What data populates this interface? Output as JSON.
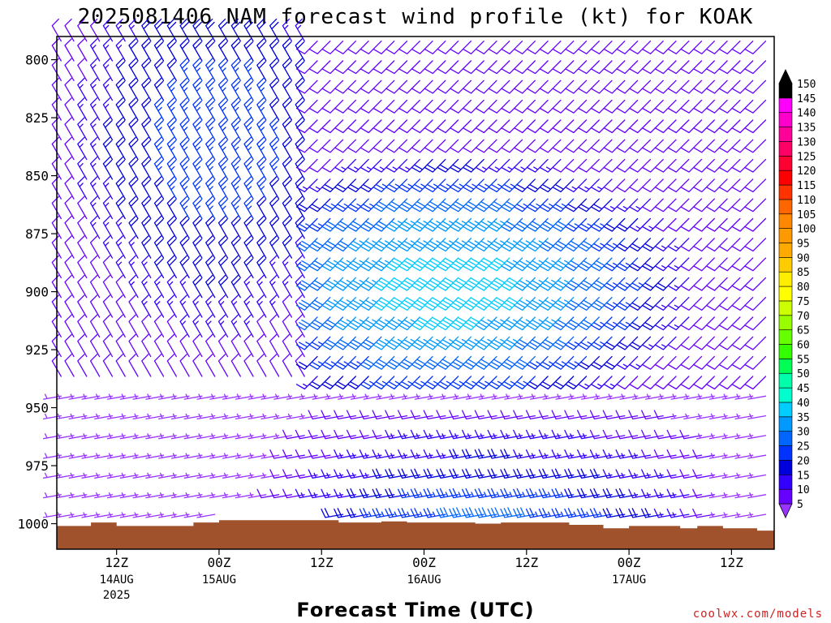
{
  "chart_data": {
    "type": "wind_barb_profile",
    "title": "2025081406 NAM forecast wind profile (kt) for KOAK",
    "xlabel": "Forecast Time (UTC)",
    "ylabel": "",
    "credit": "coolwx.com/models",
    "y_axis": {
      "range": [
        1011,
        790
      ],
      "ticks": [
        800,
        825,
        850,
        875,
        900,
        925,
        950,
        975,
        1000
      ]
    },
    "x_axis": {
      "range_hours": [
        -7,
        77
      ],
      "ticks": [
        {
          "hour": 0,
          "label": "12Z",
          "date": "14AUG",
          "year": "2025"
        },
        {
          "hour": 12,
          "label": "00Z",
          "date": "15AUG",
          "year": ""
        },
        {
          "hour": 24,
          "label": "12Z",
          "date": "",
          "year": ""
        },
        {
          "hour": 36,
          "label": "00Z",
          "date": "16AUG",
          "year": ""
        },
        {
          "hour": 48,
          "label": "12Z",
          "date": "",
          "year": ""
        },
        {
          "hour": 60,
          "label": "00Z",
          "date": "17AUG",
          "year": ""
        },
        {
          "hour": 72,
          "label": "12Z",
          "date": "",
          "year": ""
        }
      ]
    },
    "surface_pressure": [
      {
        "hour": -7,
        "p": 1001
      },
      {
        "hour": -3,
        "p": 1001
      },
      {
        "hour": -3,
        "p": 999.5
      },
      {
        "hour": 0,
        "p": 999.5
      },
      {
        "hour": 0,
        "p": 1001
      },
      {
        "hour": 9,
        "p": 1001
      },
      {
        "hour": 9,
        "p": 999.5
      },
      {
        "hour": 12,
        "p": 999.5
      },
      {
        "hour": 12,
        "p": 998.5
      },
      {
        "hour": 26,
        "p": 998.5
      },
      {
        "hour": 26,
        "p": 999.5
      },
      {
        "hour": 31,
        "p": 999.5
      },
      {
        "hour": 31,
        "p": 999
      },
      {
        "hour": 34,
        "p": 999
      },
      {
        "hour": 34,
        "p": 999.5
      },
      {
        "hour": 42,
        "p": 999.5
      },
      {
        "hour": 42,
        "p": 1000
      },
      {
        "hour": 45,
        "p": 1000
      },
      {
        "hour": 45,
        "p": 999.5
      },
      {
        "hour": 53,
        "p": 999.5
      },
      {
        "hour": 53,
        "p": 1000.5
      },
      {
        "hour": 57,
        "p": 1000.5
      },
      {
        "hour": 57,
        "p": 1002
      },
      {
        "hour": 60,
        "p": 1002
      },
      {
        "hour": 60,
        "p": 1001
      },
      {
        "hour": 66,
        "p": 1001
      },
      {
        "hour": 66,
        "p": 1002
      },
      {
        "hour": 68,
        "p": 1002
      },
      {
        "hour": 68,
        "p": 1001
      },
      {
        "hour": 71,
        "p": 1001
      },
      {
        "hour": 71,
        "p": 1002
      },
      {
        "hour": 75,
        "p": 1002
      },
      {
        "hour": 75,
        "p": 1003
      },
      {
        "hour": 77,
        "p": 1003
      }
    ],
    "wind_regimes": [
      {
        "name": "northwest_flow_aloft",
        "hours": [
          -7,
          23
        ],
        "pressure_range": [
          790,
          945
        ],
        "direction_deg": 330,
        "speed_kt": [
          10,
          25
        ]
      },
      {
        "name": "southwest_flow_aloft",
        "hours": [
          23,
          77
        ],
        "pressure_range": [
          790,
          940
        ],
        "direction_deg": 225,
        "speed_kt": [
          10,
          40
        ]
      },
      {
        "name": "westerly_flow_low",
        "hours": [
          -7,
          77
        ],
        "pressure_range": [
          940,
          1000
        ],
        "direction_deg": 260,
        "speed_kt": [
          5,
          30
        ]
      }
    ],
    "colorbar": {
      "levels": [
        5,
        10,
        15,
        20,
        25,
        30,
        35,
        40,
        45,
        50,
        55,
        60,
        65,
        70,
        75,
        80,
        85,
        90,
        95,
        100,
        105,
        110,
        115,
        120,
        125,
        130,
        135,
        140,
        145,
        150
      ],
      "colors": [
        "#9933ff",
        "#6600ff",
        "#3300ff",
        "#0000dd",
        "#0033ff",
        "#0066ff",
        "#0099ff",
        "#00ccff",
        "#00ffcc",
        "#00ffaa",
        "#00ff55",
        "#33ff00",
        "#66ff00",
        "#99ff00",
        "#ccff00",
        "#ffff00",
        "#ffee00",
        "#ffcc00",
        "#ffaa00",
        "#ff9900",
        "#ff8800",
        "#ff6600",
        "#ff3300",
        "#ff0000",
        "#ff0033",
        "#ff0066",
        "#ff0099",
        "#ff00cc",
        "#ff00ff",
        "#000000"
      ],
      "under_color": "#9933ff",
      "over_color": "#000000"
    }
  }
}
